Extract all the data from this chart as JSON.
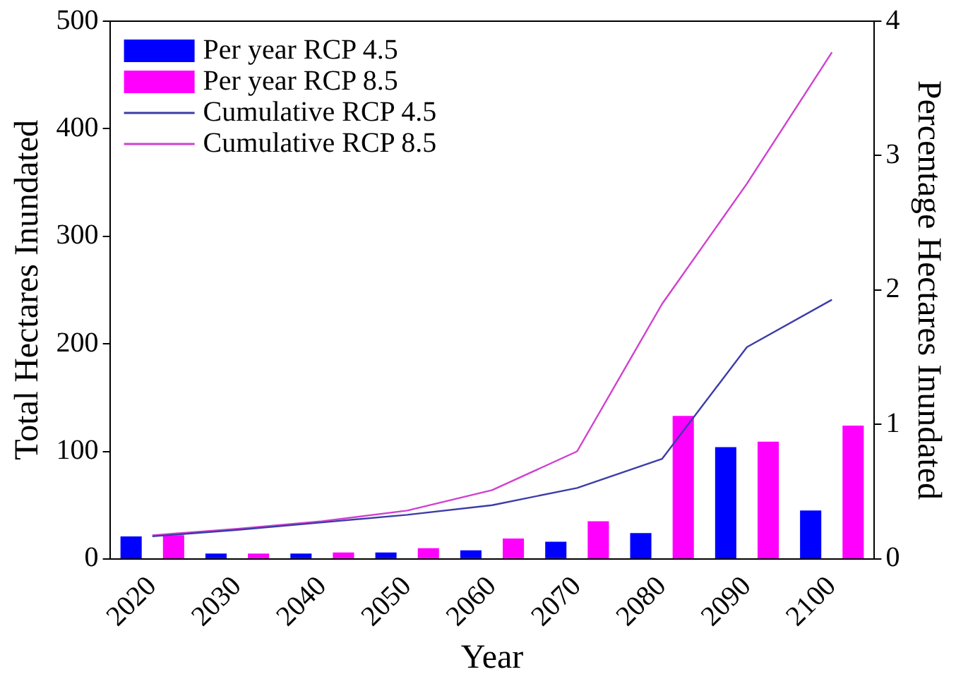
{
  "chart_data": {
    "type": "bar",
    "xlabel": "Year",
    "ylabel": "Total Hectares Inundated",
    "y2label": "Percentage Hectares Inundated",
    "categories": [
      "2020",
      "2030",
      "2040",
      "2050",
      "2060",
      "2070",
      "2080",
      "2090",
      "2100"
    ],
    "series": [
      {
        "name": "Per year RCP 4.5",
        "color": "#0000ff",
        "values": [
          21,
          5,
          5,
          6,
          8,
          16,
          24,
          104,
          45
        ]
      },
      {
        "name": "Per year RCP 8.5",
        "color": "#ff00ff",
        "values": [
          22,
          5,
          6,
          10,
          19,
          35,
          133,
          109,
          124
        ]
      },
      {
        "name": "Cumulative RCP 4.5",
        "type": "line",
        "color": "#3c3ca8",
        "values": [
          21,
          27,
          34,
          41,
          50,
          66,
          93,
          197,
          241
        ]
      },
      {
        "name": "Cumulative RCP 8.5",
        "type": "line",
        "color": "#d040d0",
        "values": [
          22,
          28,
          35,
          45,
          64,
          100,
          237,
          349,
          471
        ]
      }
    ],
    "ylim": [
      0,
      500
    ],
    "yticks": [
      0,
      100,
      200,
      300,
      400,
      500
    ],
    "y2lim": [
      0,
      4
    ],
    "y2ticks": [
      0,
      1,
      2,
      3,
      4
    ],
    "legend": "top left",
    "grid": false
  }
}
